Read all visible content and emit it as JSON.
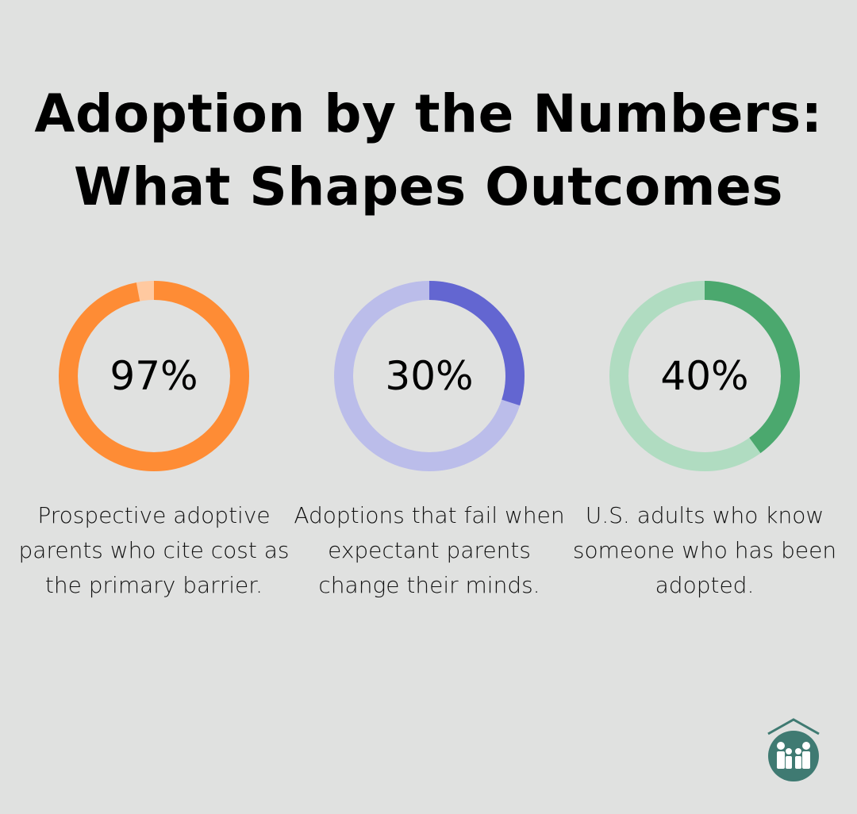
{
  "title_line1": "Adoption by the Numbers:",
  "title_line2": "What Shapes Outcomes",
  "chart_data": [
    {
      "type": "pie",
      "variant": "donut",
      "value": 97,
      "label": "97%",
      "description": "Prospective adoptive parents who cite cost as the primary barrier.",
      "color": "#fe8c35",
      "track_color": "#ffc9a0"
    },
    {
      "type": "pie",
      "variant": "donut",
      "value": 30,
      "label": "30%",
      "description": "Adoptions that fail when expectant parents change their minds.",
      "color": "#6366d1",
      "track_color": "#bbbdea"
    },
    {
      "type": "pie",
      "variant": "donut",
      "value": 40,
      "label": "40%",
      "description": "U.S. adults who know someone who has been adopted.",
      "color": "#4ba86e",
      "track_color": "#b0dcc1"
    }
  ],
  "logo_color": "#3f7a72"
}
